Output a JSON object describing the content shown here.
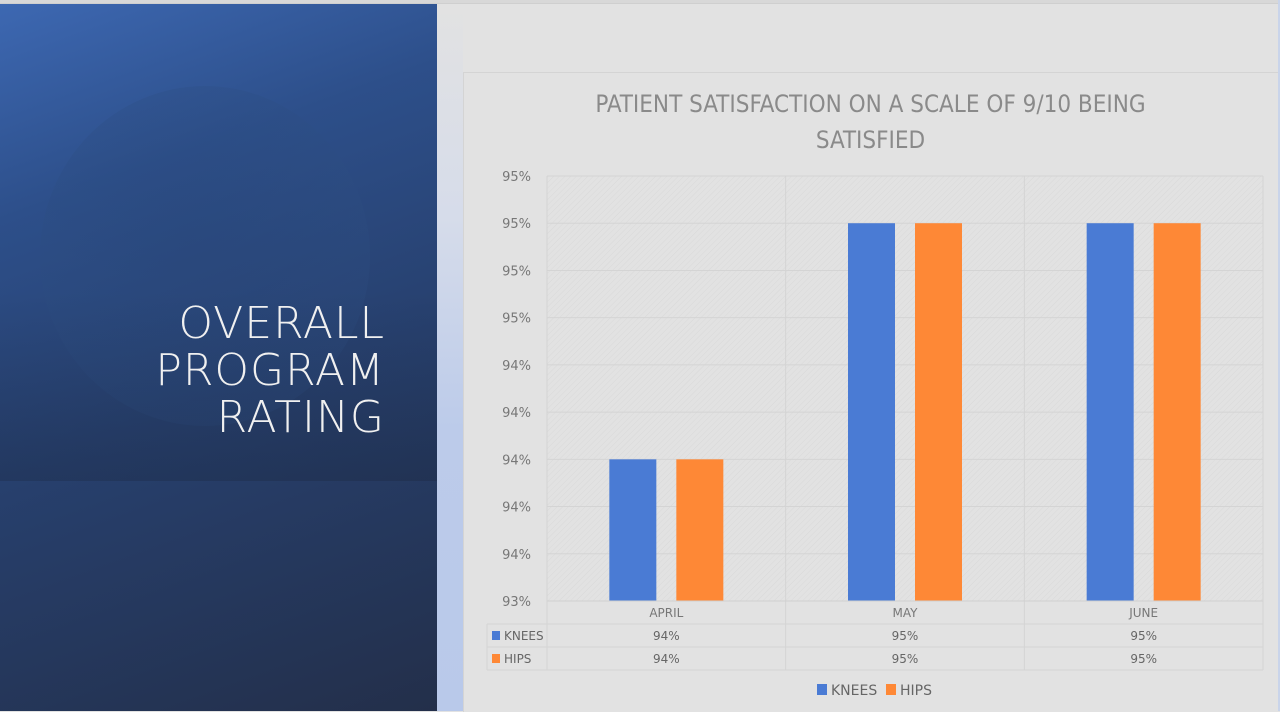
{
  "slide": {
    "title_lines": [
      "OVERALL",
      "PROGRAM",
      "RATING"
    ]
  },
  "chart_data": {
    "type": "bar",
    "title": "PATIENT SATISFACTION ON A SCALE OF 9/10 BEING SATISFIED",
    "title_lines": [
      "PATIENT SATISFACTION ON A SCALE OF 9/10 BEING",
      "SATISFIED"
    ],
    "categories": [
      "APRIL",
      "MAY",
      "JUNE"
    ],
    "series": [
      {
        "name": "KNEES",
        "color": "#4a7bd4",
        "values": [
          94.0,
          95.0,
          95.0
        ],
        "labels": [
          "94%",
          "95%",
          "95%"
        ]
      },
      {
        "name": "HIPS",
        "color": "#fe8836",
        "values": [
          94.0,
          95.0,
          95.0
        ],
        "labels": [
          "94%",
          "95%",
          "95%"
        ]
      }
    ],
    "ylim": [
      93.4,
      95.2
    ],
    "yticks": [
      93.4,
      93.6,
      93.8,
      94.0,
      94.2,
      94.4,
      94.6,
      94.8,
      95.0,
      95.2
    ],
    "ytick_labels": [
      "93%",
      "94%",
      "94%",
      "94%",
      "94%",
      "94%",
      "95%",
      "95%",
      "95%",
      "95%"
    ],
    "xlabel": "",
    "ylabel": "",
    "grid": true,
    "data_table": true,
    "legend": "bottom"
  }
}
